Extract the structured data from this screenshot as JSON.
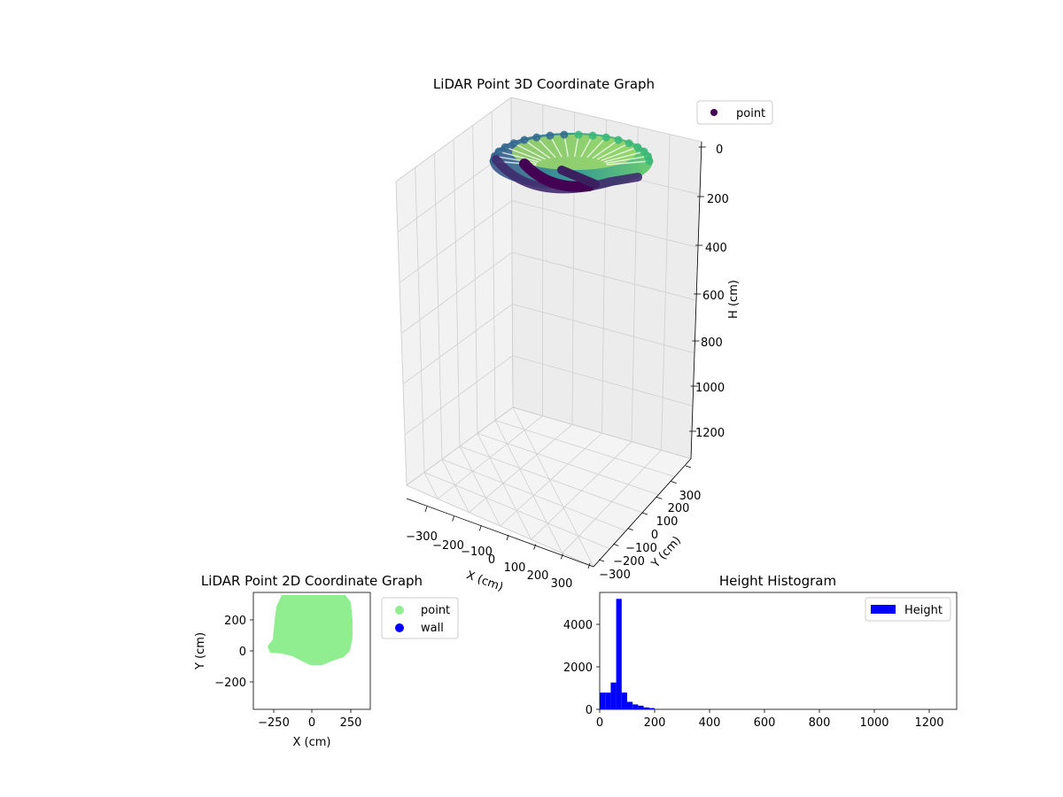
{
  "chart_data": [
    {
      "type": "scatter",
      "projection": "3d",
      "title": "LiDAR Point 3D Coordinate Graph",
      "xlabel": "X (cm)",
      "ylabel": "Y (cm)",
      "zlabel": "H (cm)",
      "x_ticks": [
        "−300",
        "−200",
        "−100",
        "0",
        "100",
        "200",
        "300"
      ],
      "y_ticks": [
        "−300",
        "−200",
        "−100",
        "0",
        "100",
        "200",
        "300"
      ],
      "z_ticks": [
        "0",
        "200",
        "400",
        "600",
        "800",
        "1000",
        "1200"
      ],
      "zlim": [
        1300,
        0
      ],
      "z_inverted": true,
      "legend": [
        "point"
      ],
      "legend_position": "top-right",
      "colormap": "viridis",
      "grid": true
    },
    {
      "type": "scatter",
      "title": "LiDAR Point 2D Coordinate Graph",
      "xlabel": "X (cm)",
      "ylabel": "Y (cm)",
      "x_ticks": [
        "−250",
        "0",
        "250"
      ],
      "y_ticks": [
        "−200",
        "0",
        "200"
      ],
      "xlim": [
        -380,
        380
      ],
      "ylim": [
        -380,
        380
      ],
      "series": [
        {
          "name": "point",
          "color": "#90ee90"
        },
        {
          "name": "wall",
          "color": "#0000ff"
        }
      ],
      "legend_position": "outside-right"
    },
    {
      "type": "bar",
      "subtype": "histogram",
      "title": "Height Histogram",
      "x_ticks": [
        "0",
        "200",
        "400",
        "600",
        "800",
        "1000",
        "1200"
      ],
      "y_ticks": [
        "0",
        "2000",
        "4000"
      ],
      "xlim": [
        0,
        1300
      ],
      "ylim": [
        0,
        5450
      ],
      "bin_width": 20,
      "bins_start": [
        0,
        20,
        40,
        60,
        80,
        100,
        120,
        140,
        160,
        180
      ],
      "values": [
        780,
        780,
        1250,
        5150,
        780,
        350,
        230,
        170,
        90,
        60
      ],
      "series": [
        {
          "name": "Height",
          "color": "#0000ff"
        }
      ],
      "legend_position": "top-right"
    }
  ]
}
